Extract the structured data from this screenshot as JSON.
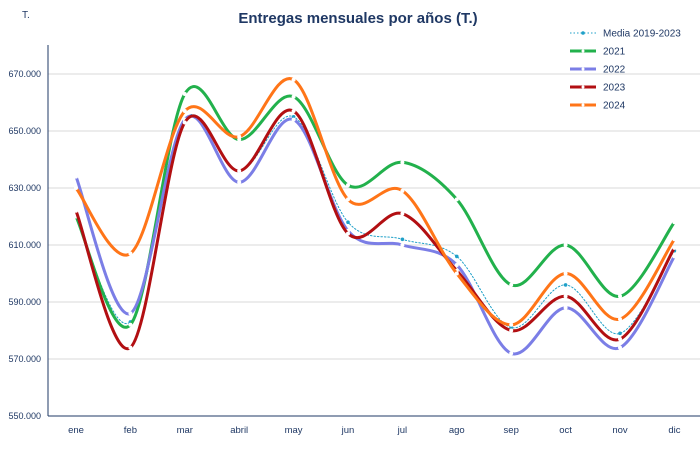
{
  "chart_data": {
    "type": "line",
    "title": "Entregas mensuales por años (T.)",
    "unit_label": "T.",
    "categories": [
      "ene",
      "feb",
      "mar",
      "abril",
      "may",
      "jun",
      "jul",
      "ago",
      "sep",
      "oct",
      "nov",
      "dic"
    ],
    "ylim": [
      550000,
      680000
    ],
    "yticks": [
      550000,
      570000,
      590000,
      610000,
      630000,
      650000,
      670000
    ],
    "ytick_labels": [
      "550.000",
      "570.000",
      "590.000",
      "610.000",
      "630.000",
      "650.000",
      "670.000"
    ],
    "grid": true,
    "legend_position": "top-right",
    "series": [
      {
        "name": "Media 2019-2023",
        "style": "dotted",
        "color": "#1fa0c8",
        "values": [
          620000,
          583000,
          654000,
          636000,
          655000,
          618000,
          612000,
          606000,
          581000,
          596000,
          579000,
          608000
        ]
      },
      {
        "name": "2021",
        "style": "solid",
        "color": "#22b14c",
        "values": [
          620000,
          582000,
          663000,
          647000,
          662000,
          631000,
          639000,
          626000,
          596000,
          610000,
          592000,
          618000
        ]
      },
      {
        "name": "2022",
        "style": "solid",
        "color": "#7b7ee6",
        "values": [
          634000,
          586000,
          654000,
          632000,
          654000,
          615000,
          610000,
          603000,
          572000,
          588000,
          574000,
          606000
        ]
      },
      {
        "name": "2023",
        "style": "solid",
        "color": "#b20f12",
        "values": [
          622000,
          574000,
          653000,
          636000,
          657000,
          614000,
          621000,
          601000,
          580000,
          592000,
          577000,
          609000
        ]
      },
      {
        "name": "2024",
        "style": "solid",
        "color": "#ff7518",
        "values": [
          630000,
          607000,
          657000,
          648000,
          668000,
          626000,
          629000,
          600000,
          582000,
          600000,
          584000,
          612000
        ]
      }
    ]
  }
}
